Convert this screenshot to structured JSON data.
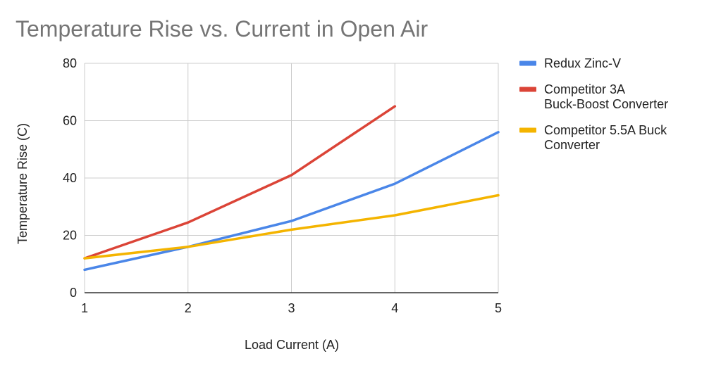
{
  "chart_data": {
    "type": "line",
    "title": "Temperature Rise vs. Current in Open Air",
    "xlabel": "Load Current (A)",
    "ylabel": "Temperature Rise (C)",
    "x": [
      1,
      2,
      3,
      4,
      5
    ],
    "xlim": [
      1,
      5
    ],
    "ylim": [
      0,
      80
    ],
    "x_ticks": [
      "1",
      "2",
      "3",
      "4",
      "5"
    ],
    "y_ticks": [
      "0",
      "20",
      "40",
      "60",
      "80"
    ],
    "grid": true,
    "legend_position": "right",
    "series": [
      {
        "name": "Redux Zinc-V",
        "legend_lines": [
          "Redux Zinc-V"
        ],
        "color": "#4a86e8",
        "values": [
          8,
          16,
          25,
          38,
          56
        ]
      },
      {
        "name": "Competitor 3A Buck-Boost Converter",
        "legend_lines": [
          "Competitor 3A",
          "Buck-Boost Converter"
        ],
        "color": "#db4437",
        "values": [
          12,
          24.5,
          41,
          65,
          null
        ]
      },
      {
        "name": "Competitor 5.5A Buck Converter",
        "legend_lines": [
          "Competitor 5.5A Buck",
          "Converter"
        ],
        "color": "#f4b400",
        "values": [
          12,
          16,
          22,
          27,
          34
        ]
      }
    ]
  }
}
